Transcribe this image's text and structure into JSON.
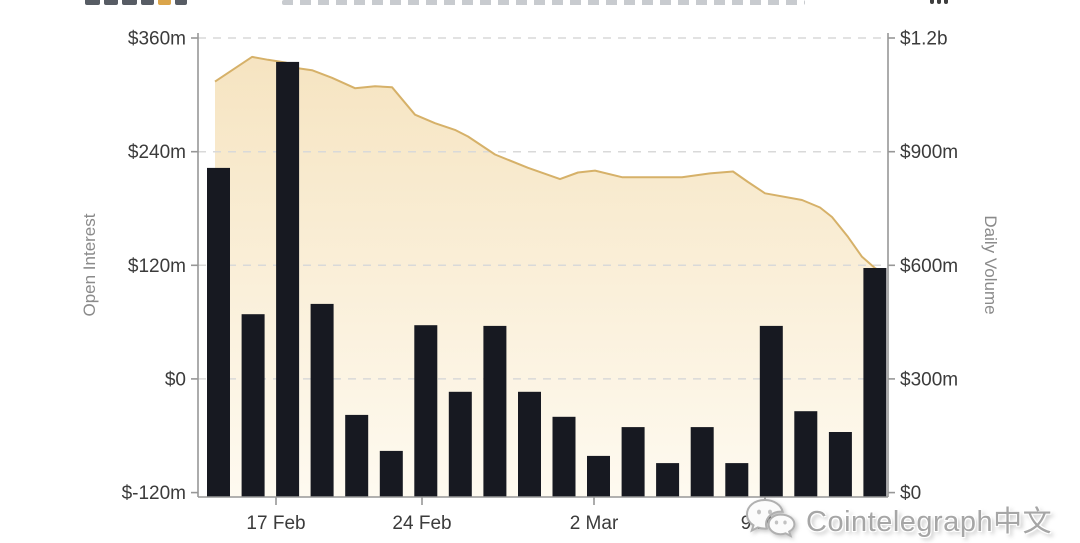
{
  "watermark": {
    "text": "Cointelegraph中文",
    "icon": "wechat-icon"
  },
  "chart_data": {
    "type": "combo",
    "background": "#ffffff",
    "grid": true,
    "left_axis": {
      "title": "Open Interest",
      "tick_labels": [
        "$360m",
        "$240m",
        "$120m",
        "$0",
        "$-120m"
      ],
      "tick_values": [
        360,
        240,
        120,
        0,
        -120
      ],
      "range": [
        -120,
        360
      ],
      "unit": "USD millions"
    },
    "right_axis": {
      "title": "Daily Volume",
      "tick_labels": [
        "$1.2b",
        "$900m",
        "$600m",
        "$300m",
        "$0"
      ],
      "tick_values": [
        1200,
        900,
        600,
        300,
        0
      ],
      "range": [
        0,
        1200
      ],
      "unit": "USD millions"
    },
    "x_axis": {
      "ticks": [
        {
          "label": "17 Feb",
          "f": 0.113
        },
        {
          "label": "24 Feb",
          "f": 0.3246
        },
        {
          "label": "2 Mar",
          "f": 0.5739
        },
        {
          "label": "9 Mar",
          "f": 0.8217
        }
      ]
    },
    "series": [
      {
        "name": "Daily Volume",
        "type": "bar",
        "axis": "right",
        "color": "#171921",
        "values": [
          857,
          471,
          1137,
          498,
          205,
          110,
          442,
          266,
          440,
          266,
          200,
          97,
          173,
          78,
          173,
          78,
          440,
          215,
          160,
          593
        ]
      },
      {
        "name": "Open Interest",
        "type": "area",
        "axis": "left",
        "line_color": "#d6b169",
        "fill_top": "#f6e4c1",
        "fill_bottom": "#fefaf0",
        "points": [
          {
            "f": 0.0246,
            "v": 314
          },
          {
            "f": 0.0783,
            "v": 340
          },
          {
            "f": 0.1014,
            "v": 337
          },
          {
            "f": 0.1275,
            "v": 334
          },
          {
            "f": 0.1449,
            "v": 328
          },
          {
            "f": 0.1652,
            "v": 326
          },
          {
            "f": 0.1942,
            "v": 318
          },
          {
            "f": 0.2275,
            "v": 307
          },
          {
            "f": 0.2565,
            "v": 309
          },
          {
            "f": 0.2812,
            "v": 308
          },
          {
            "f": 0.3145,
            "v": 279
          },
          {
            "f": 0.3435,
            "v": 270
          },
          {
            "f": 0.3725,
            "v": 263
          },
          {
            "f": 0.3913,
            "v": 256
          },
          {
            "f": 0.4304,
            "v": 237
          },
          {
            "f": 0.4783,
            "v": 223
          },
          {
            "f": 0.5246,
            "v": 211
          },
          {
            "f": 0.5507,
            "v": 218
          },
          {
            "f": 0.5754,
            "v": 220
          },
          {
            "f": 0.6145,
            "v": 213
          },
          {
            "f": 0.658,
            "v": 213
          },
          {
            "f": 0.7014,
            "v": 213
          },
          {
            "f": 0.742,
            "v": 217
          },
          {
            "f": 0.7754,
            "v": 219
          },
          {
            "f": 0.7971,
            "v": 208
          },
          {
            "f": 0.8217,
            "v": 196
          },
          {
            "f": 0.8754,
            "v": 189
          },
          {
            "f": 0.9014,
            "v": 181
          },
          {
            "f": 0.9188,
            "v": 171
          },
          {
            "f": 0.942,
            "v": 150
          },
          {
            "f": 0.9623,
            "v": 129
          },
          {
            "f": 0.9812,
            "v": 117
          },
          {
            "f": 0.9942,
            "v": 112
          }
        ]
      }
    ]
  }
}
